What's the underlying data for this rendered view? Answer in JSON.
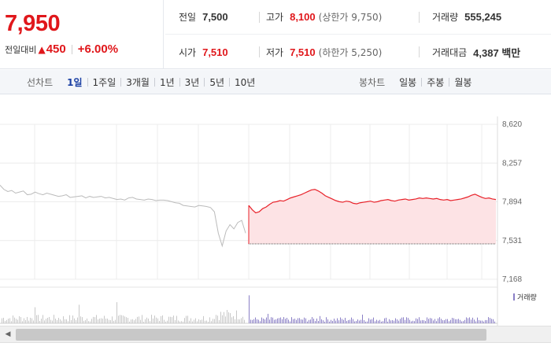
{
  "summary": {
    "price": "7,950",
    "change_label": "전일대비",
    "change_amount": "450",
    "change_percent": "+6.00%",
    "stats": [
      {
        "label": "전일",
        "value": "7,500",
        "color": "normal",
        "extra": ""
      },
      {
        "label": "고가",
        "value": "8,100",
        "color": "red",
        "extra": "(상한가 9,750)"
      },
      {
        "label": "거래량",
        "value": "555,245",
        "color": "normal",
        "extra": ""
      },
      {
        "label": "시가",
        "value": "7,510",
        "color": "red",
        "extra": ""
      },
      {
        "label": "저가",
        "value": "7,510",
        "color": "red",
        "extra": "(하한가 5,250)"
      },
      {
        "label": "거래대금",
        "value": "4,387 백만",
        "color": "normal",
        "extra": ""
      }
    ]
  },
  "tabs": {
    "line_chart_label": "선차트",
    "line_periods": [
      "1일",
      "1주일",
      "3개월",
      "1년",
      "3년",
      "5년",
      "10년"
    ],
    "active_period": "1일",
    "candle_chart_label": "봉차트",
    "candle_periods": [
      "일봉",
      "주봉",
      "월봉"
    ]
  },
  "chart_data": {
    "type": "line",
    "y_ticks": [
      "8,620",
      "8,257",
      "7,894",
      "7,531",
      "7,168"
    ],
    "ylim": [
      7168,
      8620
    ],
    "previous_close": 7500,
    "volume_legend": "거래량",
    "colors": {
      "prev_day": "#bbbbbb",
      "today": "#e8222a",
      "fill": "#fde3e5",
      "volume_prev": "#c8c8c8",
      "volume_today": "#8a7fc6"
    },
    "prev_day_series": [
      8050,
      8010,
      7990,
      8000,
      7975,
      7985,
      7995,
      7960,
      7965,
      7985,
      7970,
      7960,
      7975,
      7965,
      7955,
      7945,
      7950,
      7960,
      7935,
      7940,
      7945,
      7950,
      7930,
      7945,
      7935,
      7940,
      7945,
      7930,
      7935,
      7925,
      7915,
      7920,
      7910,
      7930,
      7935,
      7920,
      7915,
      7910,
      7920,
      7915,
      7905,
      7910,
      7910,
      7905,
      7895,
      7885,
      7880,
      7860,
      7855,
      7850,
      7845,
      7860,
      7855,
      7850,
      7840,
      7800,
      7600,
      7480,
      7620,
      7680,
      7640,
      7700,
      7720,
      7600
    ],
    "today_series": [
      7860,
      7820,
      7790,
      7800,
      7830,
      7845,
      7870,
      7890,
      7895,
      7905,
      7900,
      7915,
      7930,
      7940,
      7950,
      7960,
      7975,
      7990,
      8005,
      8010,
      7995,
      7975,
      7950,
      7935,
      7920,
      7905,
      7895,
      7890,
      7900,
      7895,
      7880,
      7875,
      7885,
      7890,
      7895,
      7900,
      7890,
      7895,
      7905,
      7910,
      7915,
      7905,
      7900,
      7910,
      7915,
      7920,
      7910,
      7915,
      7920,
      7930,
      7925,
      7930,
      7925,
      7920,
      7925,
      7915,
      7910,
      7915,
      7905,
      7910,
      7915,
      7920,
      7930,
      7940,
      7955,
      7965,
      7950,
      7935,
      7925,
      7930,
      7920,
      7915
    ]
  }
}
